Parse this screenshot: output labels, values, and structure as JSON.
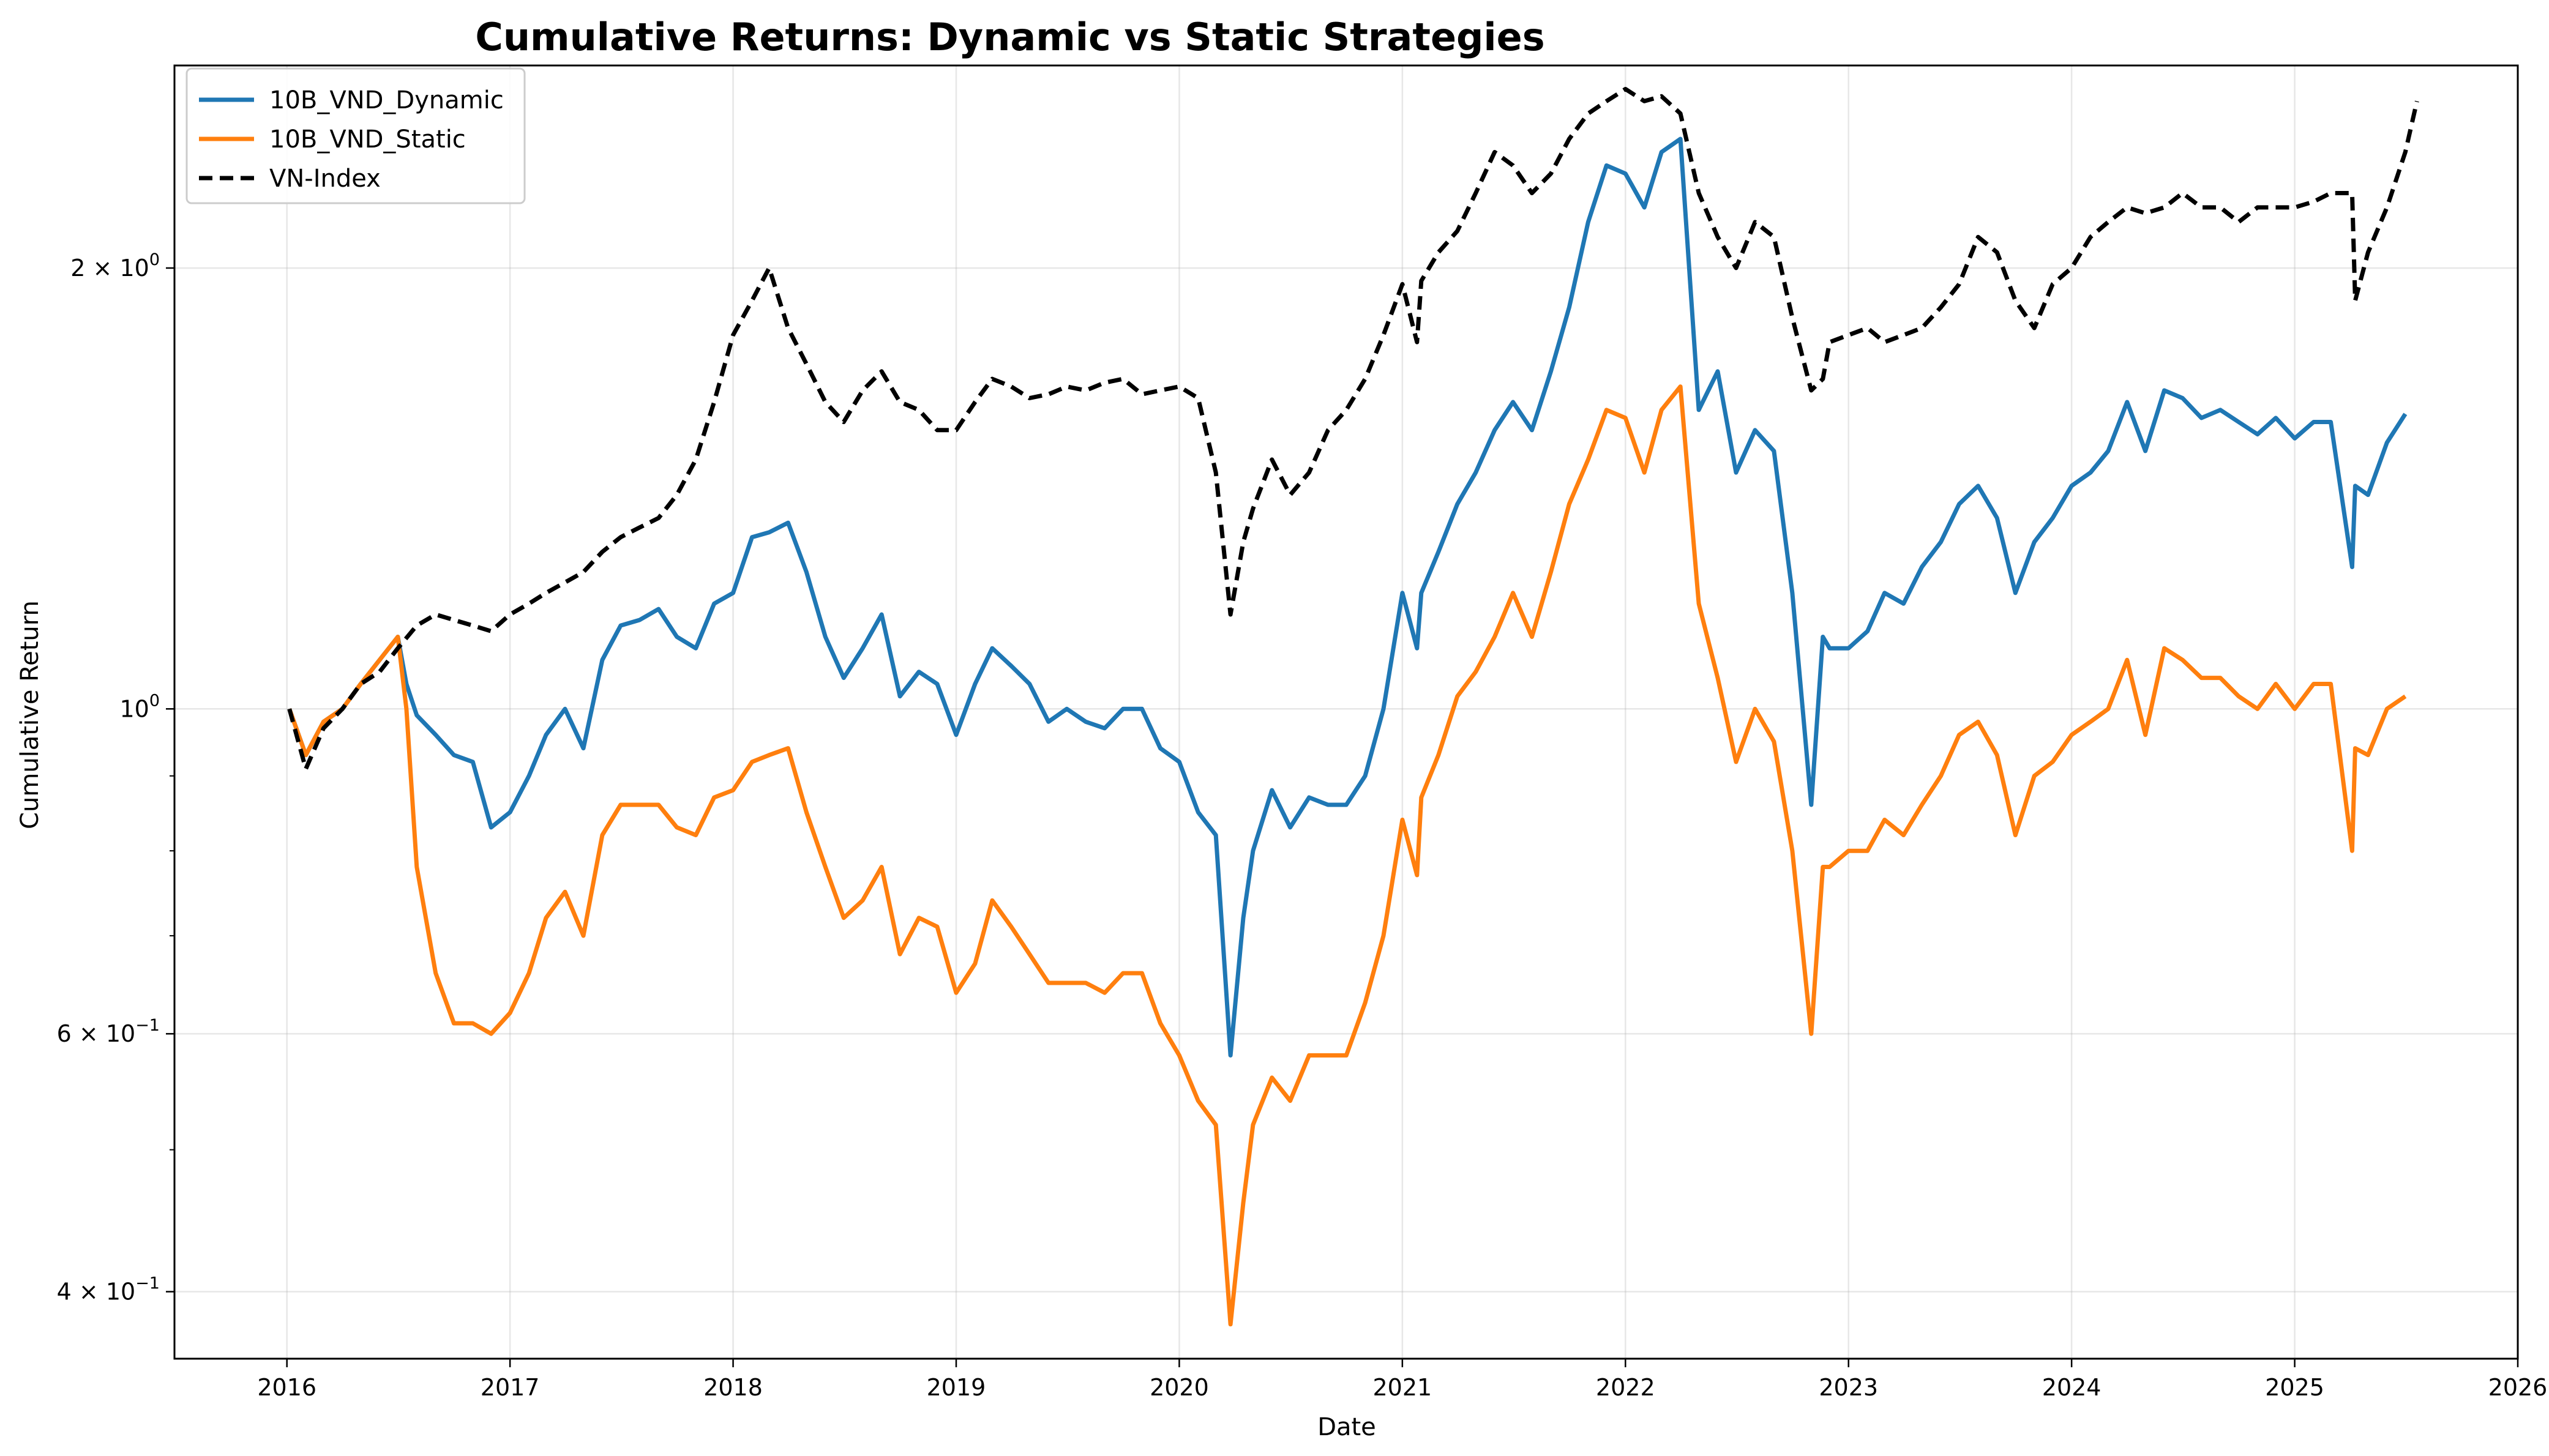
{
  "chart_data": {
    "type": "line",
    "title": "Cumulative Returns: Dynamic vs Static Strategies",
    "xlabel": "Date",
    "ylabel": "Cumulative Return",
    "yscale": "log",
    "xlim": [
      "2015-07-01",
      "2026-01-01"
    ],
    "ylim": [
      0.36,
      2.75
    ],
    "grid": true,
    "legend_position": "top-left",
    "x_ticks": [
      {
        "value": "2016-01-01",
        "label": "2016"
      },
      {
        "value": "2017-01-01",
        "label": "2017"
      },
      {
        "value": "2018-01-01",
        "label": "2018"
      },
      {
        "value": "2019-01-01",
        "label": "2019"
      },
      {
        "value": "2020-01-01",
        "label": "2020"
      },
      {
        "value": "2021-01-01",
        "label": "2021"
      },
      {
        "value": "2022-01-01",
        "label": "2022"
      },
      {
        "value": "2023-01-01",
        "label": "2023"
      },
      {
        "value": "2024-01-01",
        "label": "2024"
      },
      {
        "value": "2025-01-01",
        "label": "2025"
      },
      {
        "value": "2026-01-01",
        "label": "2026"
      }
    ],
    "y_ticks": [
      {
        "value": 0.4,
        "base": "4",
        "exp": "−1"
      },
      {
        "value": 0.6,
        "base": "6",
        "exp": "−1"
      },
      {
        "value": 1.0,
        "base": "",
        "exp": "0"
      },
      {
        "value": 2.0,
        "base": "2",
        "exp": "0"
      }
    ],
    "series": [
      {
        "name": "10B_VND_Dynamic",
        "color": "#1f77b4",
        "style": "solid",
        "x": [
          "2016-01-05",
          "2016-02-01",
          "2016-03-01",
          "2016-04-01",
          "2016-05-01",
          "2016-06-01",
          "2016-07-01",
          "2016-07-15",
          "2016-08-01",
          "2016-09-01",
          "2016-10-01",
          "2016-11-01",
          "2016-12-01",
          "2017-01-01",
          "2017-02-01",
          "2017-03-01",
          "2017-04-01",
          "2017-05-01",
          "2017-06-01",
          "2017-07-01",
          "2017-08-01",
          "2017-09-01",
          "2017-10-01",
          "2017-11-01",
          "2017-12-01",
          "2018-01-01",
          "2018-02-01",
          "2018-03-01",
          "2018-04-01",
          "2018-05-01",
          "2018-06-01",
          "2018-07-01",
          "2018-08-01",
          "2018-09-01",
          "2018-10-01",
          "2018-11-01",
          "2018-12-01",
          "2019-01-01",
          "2019-02-01",
          "2019-03-01",
          "2019-04-01",
          "2019-05-01",
          "2019-06-01",
          "2019-07-01",
          "2019-08-01",
          "2019-09-01",
          "2019-10-01",
          "2019-11-01",
          "2019-12-01",
          "2020-01-01",
          "2020-02-01",
          "2020-03-01",
          "2020-03-25",
          "2020-04-15",
          "2020-05-01",
          "2020-06-01",
          "2020-07-01",
          "2020-08-01",
          "2020-09-01",
          "2020-10-01",
          "2020-11-01",
          "2020-12-01",
          "2021-01-01",
          "2021-01-25",
          "2021-02-01",
          "2021-03-01",
          "2021-04-01",
          "2021-05-01",
          "2021-06-01",
          "2021-07-01",
          "2021-08-01",
          "2021-09-01",
          "2021-10-01",
          "2021-11-01",
          "2021-12-01",
          "2022-01-01",
          "2022-02-01",
          "2022-03-01",
          "2022-04-01",
          "2022-05-01",
          "2022-06-01",
          "2022-07-01",
          "2022-08-01",
          "2022-09-01",
          "2022-10-01",
          "2022-11-01",
          "2022-11-20",
          "2022-12-01",
          "2023-01-01",
          "2023-02-01",
          "2023-03-01",
          "2023-04-01",
          "2023-05-01",
          "2023-06-01",
          "2023-07-01",
          "2023-08-01",
          "2023-09-01",
          "2023-10-01",
          "2023-11-01",
          "2023-12-01",
          "2024-01-01",
          "2024-02-01",
          "2024-03-01",
          "2024-04-01",
          "2024-05-01",
          "2024-06-01",
          "2024-07-01",
          "2024-08-01",
          "2024-09-01",
          "2024-10-01",
          "2024-11-01",
          "2024-12-01",
          "2025-01-01",
          "2025-02-01",
          "2025-03-01",
          "2025-04-05",
          "2025-04-10",
          "2025-05-01",
          "2025-06-01",
          "2025-07-01"
        ],
        "y": [
          1.0,
          0.93,
          0.98,
          1.0,
          1.04,
          1.08,
          1.12,
          1.04,
          0.99,
          0.96,
          0.93,
          0.92,
          0.83,
          0.85,
          0.9,
          0.96,
          1.0,
          0.94,
          1.08,
          1.14,
          1.15,
          1.17,
          1.12,
          1.1,
          1.18,
          1.2,
          1.31,
          1.32,
          1.34,
          1.24,
          1.12,
          1.05,
          1.1,
          1.16,
          1.02,
          1.06,
          1.04,
          0.96,
          1.04,
          1.1,
          1.07,
          1.04,
          0.98,
          1.0,
          0.98,
          0.97,
          1.0,
          1.0,
          0.94,
          0.92,
          0.85,
          0.82,
          0.58,
          0.72,
          0.8,
          0.88,
          0.83,
          0.87,
          0.86,
          0.86,
          0.9,
          1.0,
          1.2,
          1.1,
          1.2,
          1.28,
          1.38,
          1.45,
          1.55,
          1.62,
          1.55,
          1.7,
          1.88,
          2.15,
          2.35,
          2.32,
          2.2,
          2.4,
          2.45,
          1.6,
          1.7,
          1.45,
          1.55,
          1.5,
          1.2,
          0.86,
          1.12,
          1.1,
          1.1,
          1.13,
          1.2,
          1.18,
          1.25,
          1.3,
          1.38,
          1.42,
          1.35,
          1.2,
          1.3,
          1.35,
          1.42,
          1.45,
          1.5,
          1.62,
          1.5,
          1.65,
          1.63,
          1.58,
          1.6,
          1.57,
          1.54,
          1.58,
          1.53,
          1.57,
          1.57,
          1.25,
          1.42,
          1.4,
          1.52,
          1.59
        ]
      },
      {
        "name": "10B_VND_Static",
        "color": "#ff7f0e",
        "style": "solid",
        "x": [
          "2016-01-05",
          "2016-02-01",
          "2016-03-01",
          "2016-04-01",
          "2016-05-01",
          "2016-06-01",
          "2016-07-01",
          "2016-07-15",
          "2016-08-01",
          "2016-09-01",
          "2016-10-01",
          "2016-11-01",
          "2016-12-01",
          "2017-01-01",
          "2017-02-01",
          "2017-03-01",
          "2017-04-01",
          "2017-05-01",
          "2017-06-01",
          "2017-07-01",
          "2017-08-01",
          "2017-09-01",
          "2017-10-01",
          "2017-11-01",
          "2017-12-01",
          "2018-01-01",
          "2018-02-01",
          "2018-03-01",
          "2018-04-01",
          "2018-05-01",
          "2018-06-01",
          "2018-07-01",
          "2018-08-01",
          "2018-09-01",
          "2018-10-01",
          "2018-11-01",
          "2018-12-01",
          "2019-01-01",
          "2019-02-01",
          "2019-03-01",
          "2019-04-01",
          "2019-05-01",
          "2019-06-01",
          "2019-07-01",
          "2019-08-01",
          "2019-09-01",
          "2019-10-01",
          "2019-11-01",
          "2019-12-01",
          "2020-01-01",
          "2020-02-01",
          "2020-03-01",
          "2020-03-25",
          "2020-04-15",
          "2020-05-01",
          "2020-06-01",
          "2020-07-01",
          "2020-08-01",
          "2020-09-01",
          "2020-10-01",
          "2020-11-01",
          "2020-12-01",
          "2021-01-01",
          "2021-01-25",
          "2021-02-01",
          "2021-03-01",
          "2021-04-01",
          "2021-05-01",
          "2021-06-01",
          "2021-07-01",
          "2021-08-01",
          "2021-09-01",
          "2021-10-01",
          "2021-11-01",
          "2021-12-01",
          "2022-01-01",
          "2022-02-01",
          "2022-03-01",
          "2022-04-01",
          "2022-05-01",
          "2022-06-01",
          "2022-07-01",
          "2022-08-01",
          "2022-09-01",
          "2022-10-01",
          "2022-11-01",
          "2022-11-20",
          "2022-12-01",
          "2023-01-01",
          "2023-02-01",
          "2023-03-01",
          "2023-04-01",
          "2023-05-01",
          "2023-06-01",
          "2023-07-01",
          "2023-08-01",
          "2023-09-01",
          "2023-10-01",
          "2023-11-01",
          "2023-12-01",
          "2024-01-01",
          "2024-02-01",
          "2024-03-01",
          "2024-04-01",
          "2024-05-01",
          "2024-06-01",
          "2024-07-01",
          "2024-08-01",
          "2024-09-01",
          "2024-10-01",
          "2024-11-01",
          "2024-12-01",
          "2025-01-01",
          "2025-02-01",
          "2025-03-01",
          "2025-04-05",
          "2025-04-10",
          "2025-05-01",
          "2025-06-01",
          "2025-07-01"
        ],
        "y": [
          1.0,
          0.93,
          0.98,
          1.0,
          1.04,
          1.08,
          1.12,
          1.0,
          0.78,
          0.66,
          0.61,
          0.61,
          0.6,
          0.62,
          0.66,
          0.72,
          0.75,
          0.7,
          0.82,
          0.86,
          0.86,
          0.86,
          0.83,
          0.82,
          0.87,
          0.88,
          0.92,
          0.93,
          0.94,
          0.85,
          0.78,
          0.72,
          0.74,
          0.78,
          0.68,
          0.72,
          0.71,
          0.64,
          0.67,
          0.74,
          0.71,
          0.68,
          0.65,
          0.65,
          0.65,
          0.64,
          0.66,
          0.66,
          0.61,
          0.58,
          0.54,
          0.52,
          0.38,
          0.46,
          0.52,
          0.56,
          0.54,
          0.58,
          0.58,
          0.58,
          0.63,
          0.7,
          0.84,
          0.77,
          0.87,
          0.93,
          1.02,
          1.06,
          1.12,
          1.2,
          1.12,
          1.24,
          1.38,
          1.48,
          1.6,
          1.58,
          1.45,
          1.6,
          1.66,
          1.18,
          1.05,
          0.92,
          1.0,
          0.95,
          0.8,
          0.6,
          0.78,
          0.78,
          0.8,
          0.8,
          0.84,
          0.82,
          0.86,
          0.9,
          0.96,
          0.98,
          0.93,
          0.82,
          0.9,
          0.92,
          0.96,
          0.98,
          1.0,
          1.08,
          0.96,
          1.1,
          1.08,
          1.05,
          1.05,
          1.02,
          1.0,
          1.04,
          1.0,
          1.04,
          1.04,
          0.8,
          0.94,
          0.93,
          1.0,
          1.02
        ]
      },
      {
        "name": "VN-Index",
        "color": "#000000",
        "style": "dashed",
        "x": [
          "2016-01-05",
          "2016-02-01",
          "2016-03-01",
          "2016-04-01",
          "2016-05-01",
          "2016-06-01",
          "2016-07-01",
          "2016-08-01",
          "2016-09-01",
          "2016-10-01",
          "2016-11-01",
          "2016-12-01",
          "2017-01-01",
          "2017-02-01",
          "2017-03-01",
          "2017-04-01",
          "2017-05-01",
          "2017-06-01",
          "2017-07-01",
          "2017-08-01",
          "2017-09-01",
          "2017-10-01",
          "2017-11-01",
          "2017-12-01",
          "2018-01-01",
          "2018-02-01",
          "2018-03-01",
          "2018-04-01",
          "2018-05-01",
          "2018-06-01",
          "2018-07-01",
          "2018-08-01",
          "2018-09-01",
          "2018-10-01",
          "2018-11-01",
          "2018-12-01",
          "2019-01-01",
          "2019-02-01",
          "2019-03-01",
          "2019-04-01",
          "2019-05-01",
          "2019-06-01",
          "2019-07-01",
          "2019-08-01",
          "2019-09-01",
          "2019-10-01",
          "2019-11-01",
          "2019-12-01",
          "2020-01-01",
          "2020-02-01",
          "2020-03-01",
          "2020-03-25",
          "2020-04-15",
          "2020-05-01",
          "2020-06-01",
          "2020-07-01",
          "2020-08-01",
          "2020-09-01",
          "2020-10-01",
          "2020-11-01",
          "2020-12-01",
          "2021-01-01",
          "2021-01-25",
          "2021-02-01",
          "2021-03-01",
          "2021-04-01",
          "2021-05-01",
          "2021-06-01",
          "2021-07-01",
          "2021-08-01",
          "2021-09-01",
          "2021-10-01",
          "2021-11-01",
          "2021-12-01",
          "2022-01-01",
          "2022-02-01",
          "2022-03-01",
          "2022-04-01",
          "2022-05-01",
          "2022-06-01",
          "2022-07-01",
          "2022-08-01",
          "2022-09-01",
          "2022-10-01",
          "2022-11-01",
          "2022-11-20",
          "2022-12-01",
          "2023-01-01",
          "2023-02-01",
          "2023-03-01",
          "2023-04-01",
          "2023-05-01",
          "2023-06-01",
          "2023-07-01",
          "2023-08-01",
          "2023-09-01",
          "2023-10-01",
          "2023-11-01",
          "2023-12-01",
          "2024-01-01",
          "2024-02-01",
          "2024-03-01",
          "2024-04-01",
          "2024-05-01",
          "2024-06-01",
          "2024-07-01",
          "2024-08-01",
          "2024-09-01",
          "2024-10-01",
          "2024-11-01",
          "2024-12-01",
          "2025-01-01",
          "2025-02-01",
          "2025-03-01",
          "2025-04-05",
          "2025-04-10",
          "2025-05-01",
          "2025-06-01",
          "2025-07-01",
          "2025-07-20"
        ],
        "y": [
          1.0,
          0.91,
          0.97,
          1.0,
          1.04,
          1.06,
          1.1,
          1.14,
          1.16,
          1.15,
          1.14,
          1.13,
          1.16,
          1.18,
          1.2,
          1.22,
          1.24,
          1.28,
          1.31,
          1.33,
          1.35,
          1.4,
          1.48,
          1.62,
          1.8,
          1.9,
          2.0,
          1.82,
          1.72,
          1.62,
          1.57,
          1.65,
          1.7,
          1.62,
          1.6,
          1.55,
          1.55,
          1.62,
          1.68,
          1.66,
          1.63,
          1.64,
          1.66,
          1.65,
          1.67,
          1.68,
          1.64,
          1.65,
          1.66,
          1.63,
          1.45,
          1.16,
          1.3,
          1.37,
          1.48,
          1.4,
          1.45,
          1.55,
          1.6,
          1.68,
          1.8,
          1.95,
          1.78,
          1.96,
          2.05,
          2.12,
          2.25,
          2.4,
          2.35,
          2.25,
          2.32,
          2.45,
          2.55,
          2.6,
          2.65,
          2.6,
          2.62,
          2.55,
          2.25,
          2.1,
          2.0,
          2.15,
          2.1,
          1.85,
          1.65,
          1.68,
          1.78,
          1.8,
          1.82,
          1.78,
          1.8,
          1.82,
          1.88,
          1.95,
          2.1,
          2.05,
          1.9,
          1.82,
          1.95,
          2.0,
          2.1,
          2.15,
          2.2,
          2.18,
          2.2,
          2.25,
          2.2,
          2.2,
          2.15,
          2.2,
          2.2,
          2.2,
          2.22,
          2.25,
          2.25,
          1.9,
          2.05,
          2.2,
          2.4,
          2.6
        ]
      }
    ]
  }
}
